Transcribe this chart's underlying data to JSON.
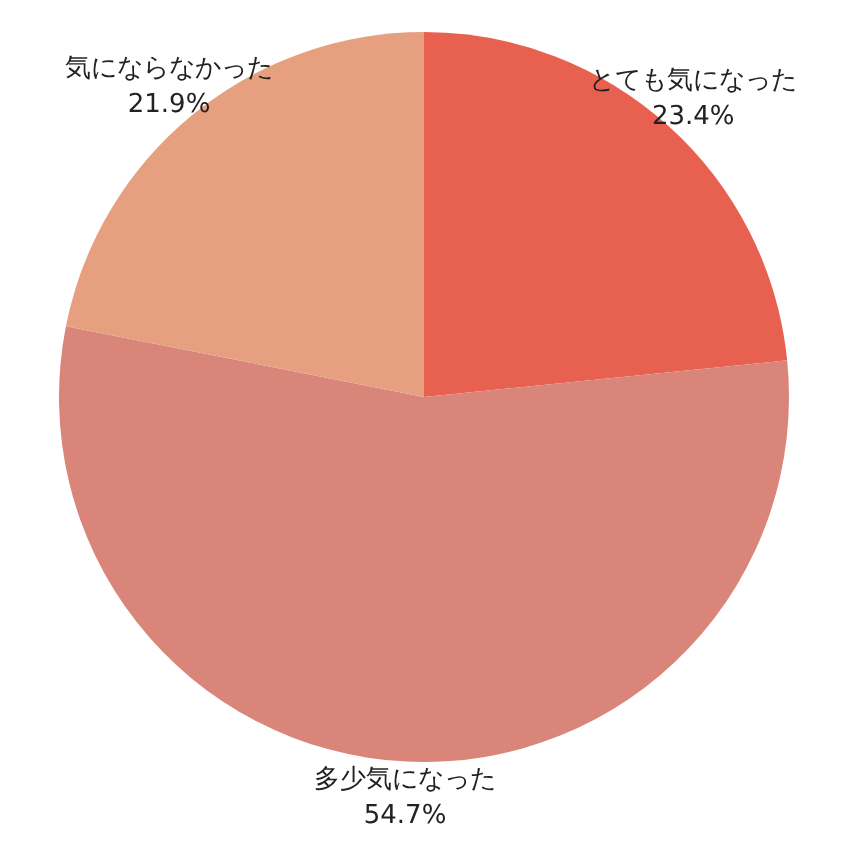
{
  "chart_data": {
    "type": "pie",
    "categories": [
      "とても気になった",
      "多少気になった",
      "気にならなかった"
    ],
    "values": [
      23.4,
      54.7,
      21.9
    ],
    "value_labels": [
      "23.4%",
      "54.7%",
      "21.9%"
    ],
    "colors": [
      "#e8604f",
      "#d9857a",
      "#e6a07f"
    ],
    "legend": false
  }
}
